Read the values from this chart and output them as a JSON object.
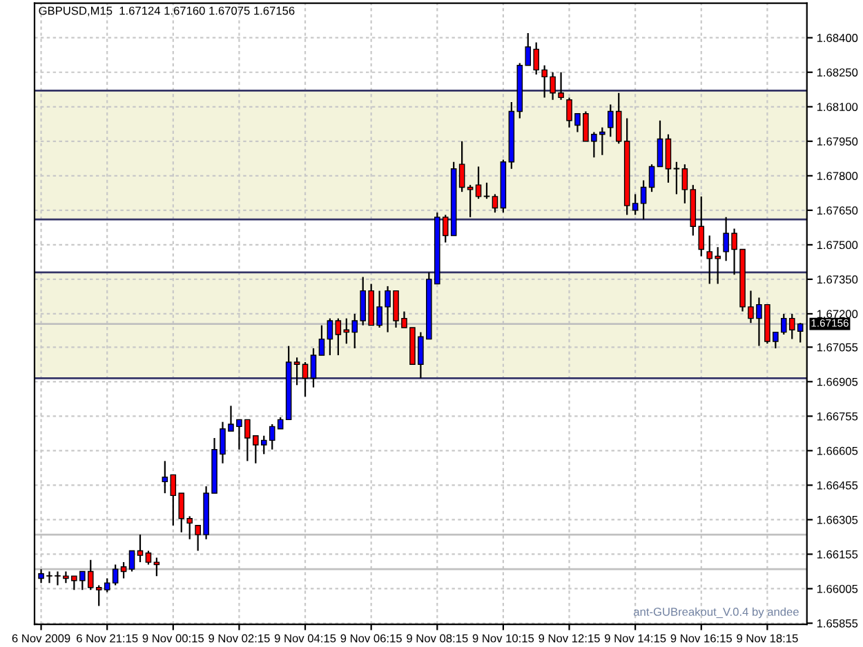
{
  "chart_data": {
    "type": "candlestick",
    "title": "GBPUSD,M15  1.67124 1.67160 1.67075 1.67156",
    "annotations": [
      "ant-GUBreakout_V.0.4 by andee"
    ],
    "categories": [
      "6 Nov 2009",
      null,
      null,
      null,
      null,
      null,
      null,
      null,
      "6 Nov 21:15",
      null,
      null,
      null,
      null,
      null,
      null,
      null,
      "9 Nov 00:15",
      null,
      null,
      null,
      null,
      null,
      null,
      null,
      "9 Nov 02:15",
      null,
      null,
      null,
      null,
      null,
      null,
      null,
      "9 Nov 04:15",
      null,
      null,
      null,
      null,
      null,
      null,
      null,
      "9 Nov 06:15",
      null,
      null,
      null,
      null,
      null,
      null,
      null,
      "9 Nov 08:15",
      null,
      null,
      null,
      null,
      null,
      null,
      null,
      "9 Nov 10:15",
      null,
      null,
      null,
      null,
      null,
      null,
      null,
      "9 Nov 12:15",
      null,
      null,
      null,
      null,
      null,
      null,
      null,
      "9 Nov 14:15",
      null,
      null,
      null,
      null,
      null,
      null,
      null,
      "9 Nov 16:15",
      null,
      null,
      null,
      null,
      null,
      null,
      null,
      "9 Nov 18:15",
      null,
      null,
      null,
      null
    ],
    "ohlc": [
      [
        1.6605,
        1.6609,
        1.6603,
        1.6607
      ],
      [
        1.6606,
        1.6608,
        1.6603,
        1.6606
      ],
      [
        1.6606,
        1.6608,
        1.6602,
        1.6606
      ],
      [
        1.6606,
        1.6608,
        1.6603,
        1.6605
      ],
      [
        1.6606,
        1.6606,
        1.66,
        1.6604
      ],
      [
        1.6604,
        1.6608,
        1.66,
        1.6608
      ],
      [
        1.6608,
        1.6613,
        1.66,
        1.6601
      ],
      [
        1.6601,
        1.6602,
        1.6593,
        1.66
      ],
      [
        1.66,
        1.6605,
        1.6599,
        1.6603
      ],
      [
        1.6603,
        1.6611,
        1.6602,
        1.6609
      ],
      [
        1.661,
        1.6612,
        1.6605,
        1.6608
      ],
      [
        1.6609,
        1.6617,
        1.6608,
        1.6617
      ],
      [
        1.6617,
        1.6624,
        1.6612,
        1.6615
      ],
      [
        1.6616,
        1.6617,
        1.6611,
        1.6612
      ],
      [
        1.6612,
        1.6614,
        1.6606,
        1.6611
      ],
      [
        1.6647,
        1.6656,
        1.6642,
        1.6649
      ],
      [
        1.665,
        1.665,
        1.6628,
        1.6641
      ],
      [
        1.6642,
        1.6642,
        1.6625,
        1.6631
      ],
      [
        1.6631,
        1.6632,
        1.6622,
        1.6629
      ],
      [
        1.6628,
        1.6628,
        1.6617,
        1.6624
      ],
      [
        1.6624,
        1.6645,
        1.6622,
        1.6642
      ],
      [
        1.6642,
        1.6666,
        1.6642,
        1.6661
      ],
      [
        1.6659,
        1.6673,
        1.6655,
        1.667
      ],
      [
        1.6669,
        1.668,
        1.6669,
        1.6672
      ],
      [
        1.6671,
        1.6674,
        1.6661,
        1.6674
      ],
      [
        1.6674,
        1.6674,
        1.6656,
        1.6666
      ],
      [
        1.6667,
        1.6667,
        1.6655,
        1.6663
      ],
      [
        1.6663,
        1.6667,
        1.6659,
        1.6665
      ],
      [
        1.6665,
        1.6672,
        1.6661,
        1.6671
      ],
      [
        1.667,
        1.6675,
        1.667,
        1.6674
      ],
      [
        1.6674,
        1.6706,
        1.6674,
        1.6699
      ],
      [
        1.6699,
        1.6701,
        1.6689,
        1.6698
      ],
      [
        1.6698,
        1.6699,
        1.6684,
        1.6692
      ],
      [
        1.6692,
        1.6705,
        1.6688,
        1.6702
      ],
      [
        1.6702,
        1.6715,
        1.6702,
        1.6709
      ],
      [
        1.6709,
        1.6718,
        1.6702,
        1.6717
      ],
      [
        1.6717,
        1.6718,
        1.6702,
        1.6711
      ],
      [
        1.6713,
        1.6718,
        1.6707,
        1.6712
      ],
      [
        1.6712,
        1.672,
        1.6705,
        1.6717
      ],
      [
        1.6717,
        1.6736,
        1.6715,
        1.673
      ],
      [
        1.673,
        1.6733,
        1.6715,
        1.6715
      ],
      [
        1.6715,
        1.673,
        1.6714,
        1.6723
      ],
      [
        1.6723,
        1.6732,
        1.6712,
        1.673
      ],
      [
        1.673,
        1.673,
        1.6714,
        1.6717
      ],
      [
        1.6718,
        1.6721,
        1.6714,
        1.6714
      ],
      [
        1.6714,
        1.6714,
        1.6698,
        1.6698
      ],
      [
        1.6698,
        1.6712,
        1.6692,
        1.671
      ],
      [
        1.6709,
        1.6738,
        1.6709,
        1.6735
      ],
      [
        1.6733,
        1.6764,
        1.6733,
        1.6762
      ],
      [
        1.6762,
        1.6763,
        1.6751,
        1.6754
      ],
      [
        1.6754,
        1.6786,
        1.6754,
        1.6783
      ],
      [
        1.6785,
        1.6795,
        1.6773,
        1.6775
      ],
      [
        1.6775,
        1.6776,
        1.6762,
        1.6774
      ],
      [
        1.6776,
        1.6784,
        1.677,
        1.6771
      ],
      [
        1.6771,
        1.6777,
        1.677,
        1.6771
      ],
      [
        1.6771,
        1.6772,
        1.6764,
        1.6766
      ],
      [
        1.6766,
        1.6787,
        1.6764,
        1.6786
      ],
      [
        1.6786,
        1.6812,
        1.6783,
        1.6808
      ],
      [
        1.6808,
        1.6829,
        1.6805,
        1.6828
      ],
      [
        1.6828,
        1.6842,
        1.6828,
        1.6836
      ],
      [
        1.6835,
        1.6838,
        1.6824,
        1.6826
      ],
      [
        1.6826,
        1.6828,
        1.6814,
        1.6823
      ],
      [
        1.6823,
        1.6825,
        1.6813,
        1.6816
      ],
      [
        1.6816,
        1.6825,
        1.6813,
        1.6814
      ],
      [
        1.6813,
        1.6814,
        1.6801,
        1.6804
      ],
      [
        1.6802,
        1.6807,
        1.6799,
        1.6807
      ],
      [
        1.6807,
        1.6808,
        1.6795,
        1.6795
      ],
      [
        1.6795,
        1.6799,
        1.6788,
        1.6798
      ],
      [
        1.6798,
        1.6801,
        1.6789,
        1.6799
      ],
      [
        1.6801,
        1.6811,
        1.6797,
        1.6808
      ],
      [
        1.6808,
        1.6816,
        1.6794,
        1.6795
      ],
      [
        1.6795,
        1.6805,
        1.6763,
        1.6767
      ],
      [
        1.6765,
        1.6772,
        1.6763,
        1.6768
      ],
      [
        1.6768,
        1.6778,
        1.6761,
        1.6775
      ],
      [
        1.6775,
        1.6785,
        1.6773,
        1.6784
      ],
      [
        1.6784,
        1.6804,
        1.6784,
        1.6796
      ],
      [
        1.6796,
        1.6798,
        1.6777,
        1.6783
      ],
      [
        1.6783,
        1.6786,
        1.6772,
        1.6783
      ],
      [
        1.6783,
        1.6785,
        1.6768,
        1.6774
      ],
      [
        1.6774,
        1.6776,
        1.6754,
        1.6758
      ],
      [
        1.6758,
        1.6771,
        1.6745,
        1.6748
      ],
      [
        1.6747,
        1.6754,
        1.6733,
        1.6744
      ],
      [
        1.6745,
        1.6749,
        1.6733,
        1.6744
      ],
      [
        1.6747,
        1.6762,
        1.6743,
        1.6755
      ],
      [
        1.6755,
        1.6757,
        1.6737,
        1.6748
      ],
      [
        1.6748,
        1.6748,
        1.6721,
        1.6723
      ],
      [
        1.6723,
        1.673,
        1.6716,
        1.6718
      ],
      [
        1.6718,
        1.6727,
        1.6706,
        1.6724
      ],
      [
        1.6724,
        1.6724,
        1.6707,
        1.6708
      ],
      [
        1.6708,
        1.6712,
        1.6705,
        1.6712
      ],
      [
        1.6712,
        1.672,
        1.6711,
        1.6718
      ],
      [
        1.6718,
        1.672,
        1.6709,
        1.6713
      ],
      [
        1.67124,
        1.6716,
        1.67075,
        1.67156
      ]
    ],
    "colors": [
      "#0000ff",
      "#ff0000",
      "#ff0000",
      "#ff0000",
      "#ff0000",
      "#0000ff",
      "#ff0000",
      "#ff0000",
      "#0000ff",
      "#0000ff",
      "#ff0000",
      "#0000ff",
      "#ff0000",
      "#ff0000",
      "#ff0000",
      "#0000ff",
      "#ff0000",
      "#ff0000",
      "#ff0000",
      "#ff0000",
      "#0000ff",
      "#0000ff",
      "#0000ff",
      "#0000ff",
      "#0000ff",
      "#ff0000",
      "#ff0000",
      "#0000ff",
      "#0000ff",
      "#0000ff",
      "#0000ff",
      "#ff0000",
      "#ff0000",
      "#0000ff",
      "#0000ff",
      "#0000ff",
      "#ff0000",
      "#ff0000",
      "#0000ff",
      "#0000ff",
      "#ff0000",
      "#0000ff",
      "#0000ff",
      "#ff0000",
      "#ff0000",
      "#ff0000",
      "#0000ff",
      "#0000ff",
      "#0000ff",
      "#ff0000",
      "#0000ff",
      "#ff0000",
      "#ff0000",
      "#ff0000",
      "#ff0000",
      "#ff0000",
      "#0000ff",
      "#0000ff",
      "#0000ff",
      "#0000ff",
      "#ff0000",
      "#ff0000",
      "#ff0000",
      "#ff0000",
      "#ff0000",
      "#0000ff",
      "#ff0000",
      "#0000ff",
      "#0000ff",
      "#0000ff",
      "#ff0000",
      "#ff0000",
      "#0000ff",
      "#0000ff",
      "#0000ff",
      "#0000ff",
      "#ff0000",
      "#ff0000",
      "#ff0000",
      "#ff0000",
      "#ff0000",
      "#ff0000",
      "#ff0000",
      "#0000ff",
      "#ff0000",
      "#ff0000",
      "#ff0000",
      "#0000ff",
      "#ff0000",
      "#0000ff",
      "#0000ff",
      "#ff0000",
      "#0000ff"
    ],
    "ylim": [
      1.6585,
      1.6855
    ],
    "yticks": [
      1.65855,
      1.66005,
      1.66155,
      1.66305,
      1.66455,
      1.66605,
      1.66755,
      1.66905,
      1.67055,
      {
        "value": 1.672,
        "label": "1.67200"
      },
      {
        "value": 1.6735,
        "label": "1.67350"
      },
      {
        "value": 1.675,
        "label": "1.67500"
      },
      {
        "value": 1.6765,
        "label": "1.67650"
      },
      {
        "value": 1.678,
        "label": "1.67800"
      },
      {
        "value": 1.6795,
        "label": "1.67950"
      },
      {
        "value": 1.681,
        "label": "1.68100"
      },
      {
        "value": 1.6825,
        "label": "1.68250"
      },
      {
        "value": 1.684,
        "label": "1.68400"
      }
    ],
    "ref_lines": [
      {
        "axis": "y",
        "value": 1.67156,
        "label": "1.67156",
        "color": "#c0c0c0"
      },
      {
        "axis": "y",
        "value": 1.6624,
        "color": "#c0c0c0"
      },
      {
        "axis": "y",
        "value": 1.6609,
        "color": "#c0c0c0"
      },
      {
        "axis": "y",
        "value": 1.6692,
        "color": "#333366"
      },
      {
        "axis": "y",
        "value": 1.6738,
        "color": "#333366"
      },
      {
        "axis": "y",
        "value": 1.6761,
        "color": "#333366"
      },
      {
        "axis": "y",
        "value": 1.6817,
        "color": "#333366"
      }
    ],
    "bands": [
      {
        "axis": "y",
        "from": 1.6692,
        "to": 1.6738,
        "color": "#eeeecc"
      },
      {
        "axis": "y",
        "from": 1.6761,
        "to": 1.6817,
        "color": "#eeeecc"
      }
    ],
    "grid": true
  }
}
